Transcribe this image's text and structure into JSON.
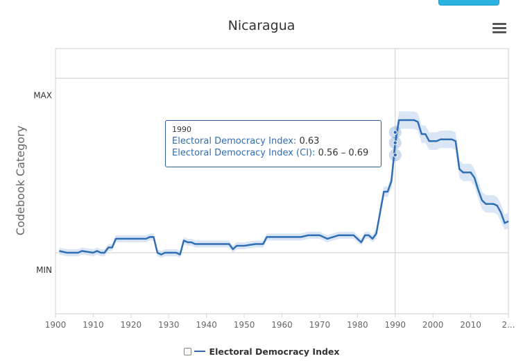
{
  "chart_title": "Nicaragua",
  "colors": {
    "series": "#2f6db5",
    "ci_band": "#cdddf2",
    "grid": "#cccccc",
    "crosshair": "#cccccc"
  },
  "legend": {
    "label": "Electoral Democracy Index",
    "checked": false
  },
  "tooltip": {
    "year": "1990",
    "series_label": "Electoral Democracy Index:",
    "series_value": "0.63",
    "ci_label": "Electoral Democracy Index (CI):",
    "ci_value": "0.56 – 0.69"
  },
  "chart_data": {
    "type": "line",
    "title": "Nicaragua",
    "ylabel": "Codebook Category",
    "xlabel": "",
    "x_ticks": [
      "1900",
      "1910",
      "1920",
      "1930",
      "1940",
      "1950",
      "1960",
      "1970",
      "1980",
      "1990",
      "2000",
      "2010",
      "2..."
    ],
    "y_ticks": [
      "MAX",
      "MIN"
    ],
    "xlim": [
      1900,
      2020
    ],
    "ylim": [
      -0.35,
      1.17
    ],
    "y_tick_values": [
      1,
      0
    ],
    "grid": true,
    "crosshair_x": 1990,
    "series": [
      {
        "name": "Electoral Democracy Index",
        "x": [
          1901,
          1903,
          1906,
          1907,
          1910,
          1911,
          1912,
          1913,
          1914,
          1915,
          1916,
          1917,
          1920,
          1921,
          1924,
          1925,
          1926,
          1927,
          1928,
          1929,
          1932,
          1933,
          1934,
          1935,
          1936,
          1937,
          1940,
          1945,
          1946,
          1947,
          1948,
          1950,
          1953,
          1955,
          1956,
          1957,
          1960,
          1965,
          1967,
          1970,
          1971,
          1972,
          1975,
          1977,
          1978,
          1979,
          1981,
          1982,
          1983,
          1984,
          1985,
          1987,
          1988,
          1989,
          1990,
          1991,
          1993,
          1995,
          1996,
          1997,
          1998,
          1999,
          2000,
          2001,
          2002,
          2003,
          2005,
          2006,
          2007,
          2008,
          2010,
          2011,
          2012,
          2013,
          2014,
          2015,
          2016,
          2017,
          2018,
          2019,
          2020
        ],
        "values": [
          0.01,
          0.0,
          0.0,
          0.01,
          0.0,
          0.01,
          0.0,
          0.0,
          0.03,
          0.03,
          0.08,
          0.08,
          0.08,
          0.08,
          0.08,
          0.09,
          0.09,
          0.0,
          -0.01,
          0.0,
          0.0,
          -0.01,
          0.07,
          0.06,
          0.06,
          0.05,
          0.05,
          0.05,
          0.05,
          0.02,
          0.04,
          0.04,
          0.05,
          0.05,
          0.09,
          0.09,
          0.09,
          0.09,
          0.1,
          0.1,
          0.09,
          0.08,
          0.1,
          0.1,
          0.1,
          0.1,
          0.06,
          0.1,
          0.1,
          0.08,
          0.11,
          0.35,
          0.35,
          0.41,
          0.63,
          0.76,
          0.76,
          0.76,
          0.75,
          0.68,
          0.68,
          0.64,
          0.64,
          0.64,
          0.65,
          0.65,
          0.65,
          0.64,
          0.48,
          0.46,
          0.46,
          0.43,
          0.36,
          0.3,
          0.28,
          0.28,
          0.28,
          0.27,
          0.23,
          0.17,
          0.18
        ],
        "ci_low": [
          -0.01,
          -0.02,
          -0.02,
          -0.01,
          -0.02,
          -0.01,
          -0.02,
          -0.02,
          0.01,
          0.01,
          0.06,
          0.06,
          0.06,
          0.06,
          0.06,
          0.07,
          0.07,
          -0.02,
          -0.03,
          -0.02,
          -0.02,
          -0.03,
          0.05,
          0.04,
          0.04,
          0.03,
          0.03,
          0.03,
          0.03,
          0.0,
          0.02,
          0.02,
          0.03,
          0.03,
          0.07,
          0.07,
          0.07,
          0.07,
          0.08,
          0.08,
          0.07,
          0.06,
          0.08,
          0.08,
          0.08,
          0.08,
          0.04,
          0.08,
          0.08,
          0.06,
          0.08,
          0.32,
          0.32,
          0.37,
          0.56,
          0.71,
          0.71,
          0.71,
          0.7,
          0.63,
          0.63,
          0.59,
          0.59,
          0.59,
          0.6,
          0.6,
          0.6,
          0.59,
          0.43,
          0.41,
          0.41,
          0.38,
          0.31,
          0.25,
          0.23,
          0.23,
          0.23,
          0.22,
          0.18,
          0.13,
          0.14
        ],
        "ci_high": [
          0.03,
          0.02,
          0.02,
          0.03,
          0.02,
          0.03,
          0.02,
          0.02,
          0.05,
          0.05,
          0.1,
          0.1,
          0.1,
          0.1,
          0.1,
          0.11,
          0.11,
          0.02,
          0.01,
          0.02,
          0.02,
          0.01,
          0.09,
          0.08,
          0.08,
          0.07,
          0.07,
          0.07,
          0.07,
          0.04,
          0.06,
          0.06,
          0.07,
          0.07,
          0.11,
          0.11,
          0.11,
          0.11,
          0.12,
          0.12,
          0.11,
          0.1,
          0.12,
          0.12,
          0.12,
          0.12,
          0.08,
          0.12,
          0.12,
          0.1,
          0.14,
          0.38,
          0.38,
          0.45,
          0.69,
          0.81,
          0.81,
          0.81,
          0.8,
          0.73,
          0.73,
          0.69,
          0.69,
          0.69,
          0.7,
          0.7,
          0.7,
          0.69,
          0.53,
          0.51,
          0.51,
          0.48,
          0.41,
          0.35,
          0.33,
          0.33,
          0.33,
          0.32,
          0.28,
          0.22,
          0.23
        ]
      }
    ]
  }
}
